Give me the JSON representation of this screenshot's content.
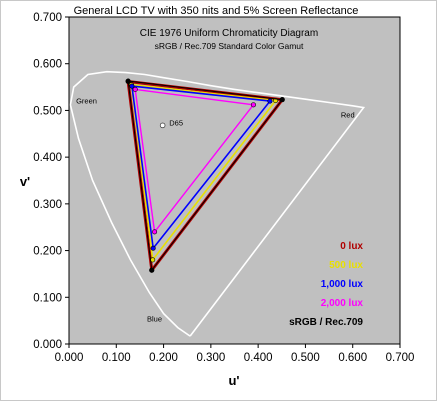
{
  "chart_data": {
    "type": "line",
    "title": "General LCD TV  with 350 nits  and  5% Screen Reflectance",
    "inner_title": "CIE 1976 Uniform Chromaticity Diagram",
    "inner_subtitle": "sRGB / Rec.709 Standard Color Gamut",
    "xlabel": "u'",
    "ylabel": "v'",
    "xlim": [
      0.0,
      0.7
    ],
    "ylim": [
      0.0,
      0.7
    ],
    "x_ticks": [
      "0.000",
      "0.100",
      "0.200",
      "0.300",
      "0.400",
      "0.500",
      "0.600",
      "0.700"
    ],
    "y_ticks": [
      "0.000",
      "0.100",
      "0.200",
      "0.300",
      "0.400",
      "0.500",
      "0.600",
      "0.700"
    ],
    "grid": false,
    "legend_position": "bottom-right",
    "point_labels": [
      {
        "text": "Green",
        "u": 0.015,
        "v": 0.515
      },
      {
        "text": "Red",
        "u": 0.575,
        "v": 0.485
      },
      {
        "text": "Blue",
        "u": 0.165,
        "v": 0.048
      },
      {
        "text": "D65",
        "u": 0.212,
        "v": 0.468
      }
    ],
    "white_point": {
      "name": "D65",
      "u": 0.198,
      "v": 0.468
    },
    "spectral_locus": [
      [
        0.256,
        0.017
      ],
      [
        0.23,
        0.035
      ],
      [
        0.2,
        0.065
      ],
      [
        0.17,
        0.11
      ],
      [
        0.13,
        0.18
      ],
      [
        0.09,
        0.26
      ],
      [
        0.05,
        0.35
      ],
      [
        0.02,
        0.44
      ],
      [
        0.003,
        0.512
      ],
      [
        0.01,
        0.55
      ],
      [
        0.04,
        0.577
      ],
      [
        0.08,
        0.583
      ],
      [
        0.12,
        0.581
      ],
      [
        0.16,
        0.577
      ],
      [
        0.2,
        0.57
      ],
      [
        0.25,
        0.562
      ],
      [
        0.3,
        0.553
      ],
      [
        0.35,
        0.545
      ],
      [
        0.4,
        0.538
      ],
      [
        0.45,
        0.531
      ],
      [
        0.5,
        0.524
      ],
      [
        0.55,
        0.517
      ],
      [
        0.6,
        0.51
      ],
      [
        0.623,
        0.506
      ],
      [
        0.256,
        0.017
      ]
    ],
    "series": [
      {
        "name": "0 lux",
        "color": "#b00000",
        "points": [
          [
            0.451,
            0.523
          ],
          [
            0.125,
            0.562
          ],
          [
            0.175,
            0.158
          ]
        ]
      },
      {
        "name": "500 lux",
        "color": "#e8e000",
        "points": [
          [
            0.437,
            0.521
          ],
          [
            0.132,
            0.555
          ],
          [
            0.177,
            0.18
          ]
        ]
      },
      {
        "name": "1,000 lux",
        "color": "#0000ff",
        "points": [
          [
            0.425,
            0.52
          ],
          [
            0.133,
            0.552
          ],
          [
            0.178,
            0.205
          ]
        ]
      },
      {
        "name": "2,000 lux",
        "color": "#ff00ff",
        "points": [
          [
            0.39,
            0.512
          ],
          [
            0.14,
            0.545
          ],
          [
            0.181,
            0.24
          ]
        ]
      },
      {
        "name": "sRGB / Rec.709",
        "color": "#000000",
        "points": [
          [
            0.451,
            0.523
          ],
          [
            0.125,
            0.563
          ],
          [
            0.175,
            0.158
          ]
        ]
      }
    ]
  }
}
